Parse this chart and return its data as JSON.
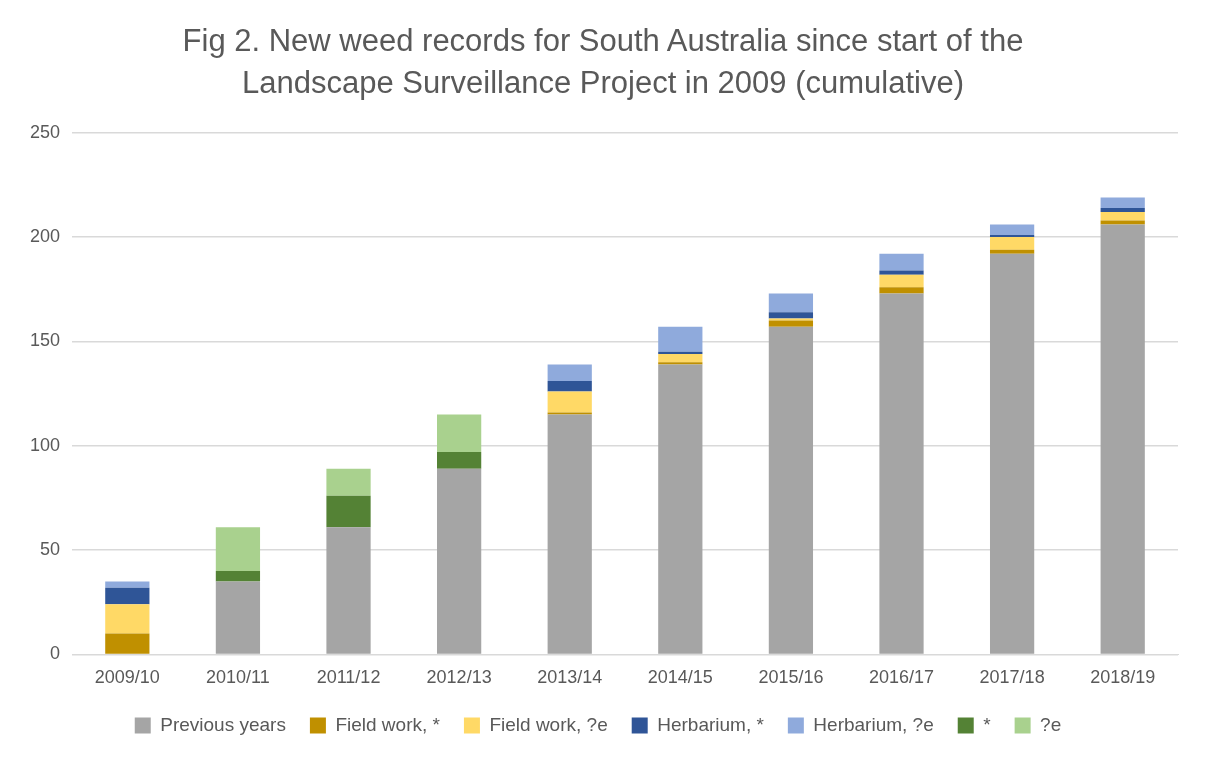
{
  "chart_data": {
    "type": "bar",
    "title": "Fig 2. New weed records for South Australia since start of the Landscape Surveillance Project in 2009 (cumulative)",
    "stacked": true,
    "legend": "bottom",
    "grid": "y",
    "ylim": [
      0,
      250
    ],
    "yticks": [
      0,
      50,
      100,
      150,
      200,
      250
    ],
    "categories": [
      "2009/10",
      "2010/11",
      "2011/12",
      "2012/13",
      "2013/14",
      "2014/15",
      "2015/16",
      "2016/17",
      "2017/18",
      "2018/19"
    ],
    "series": [
      {
        "name": "Previous years",
        "color": "#a5a5a5",
        "values": [
          0,
          35,
          61,
          89,
          115,
          139,
          157,
          173,
          192,
          206
        ]
      },
      {
        "name": "Field work, *",
        "color": "#c09000",
        "values": [
          10,
          0,
          0,
          0,
          1,
          1,
          3,
          3,
          2,
          2
        ]
      },
      {
        "name": "Field work, ?e",
        "color": "#ffd966",
        "values": [
          14,
          0,
          0,
          0,
          10,
          4,
          1,
          6,
          6,
          4
        ]
      },
      {
        "name": "Herbarium, *",
        "color": "#2f5597",
        "values": [
          8,
          0,
          0,
          0,
          5,
          1,
          3,
          2,
          1,
          2
        ]
      },
      {
        "name": "Herbarium, ?e",
        "color": "#8faadc",
        "values": [
          3,
          0,
          0,
          0,
          8,
          12,
          9,
          8,
          5,
          5
        ]
      },
      {
        "name": "*",
        "color": "#548235",
        "values": [
          0,
          5,
          15,
          8,
          0,
          0,
          0,
          0,
          0,
          0
        ]
      },
      {
        "name": "?e",
        "color": "#a9d18e",
        "values": [
          0,
          21,
          13,
          18,
          0,
          0,
          0,
          0,
          0,
          0
        ]
      }
    ]
  }
}
